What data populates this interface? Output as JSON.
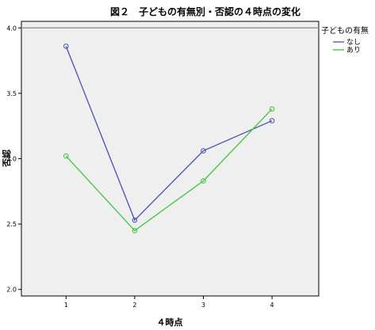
{
  "chart_data": {
    "type": "line",
    "title": "図２　子どもの有無別・否認の４時点の変化",
    "xlabel": "４時点",
    "ylabel": "否認",
    "x": [
      1,
      2,
      3,
      4
    ],
    "xticks": [
      "1",
      "2",
      "3",
      "4"
    ],
    "yticks": [
      "2.0",
      "2.5",
      "3.0",
      "3.5",
      "4.0"
    ],
    "ylim": [
      1.95,
      4.05
    ],
    "xlim": [
      0.35,
      4.68
    ],
    "reference_line_y": 4.0,
    "legend": {
      "title": "子どもの有無",
      "placement": "top-right outside"
    },
    "grid": false,
    "series": [
      {
        "name": "なし",
        "color": "#4a4fb5",
        "values": [
          3.86,
          2.53,
          3.06,
          3.29
        ]
      },
      {
        "name": "あり",
        "color": "#3ec43e",
        "values": [
          3.02,
          2.45,
          2.83,
          3.38
        ]
      }
    ],
    "colors": {
      "plot_bg": "#efefef",
      "reference_line": "#999999"
    }
  }
}
